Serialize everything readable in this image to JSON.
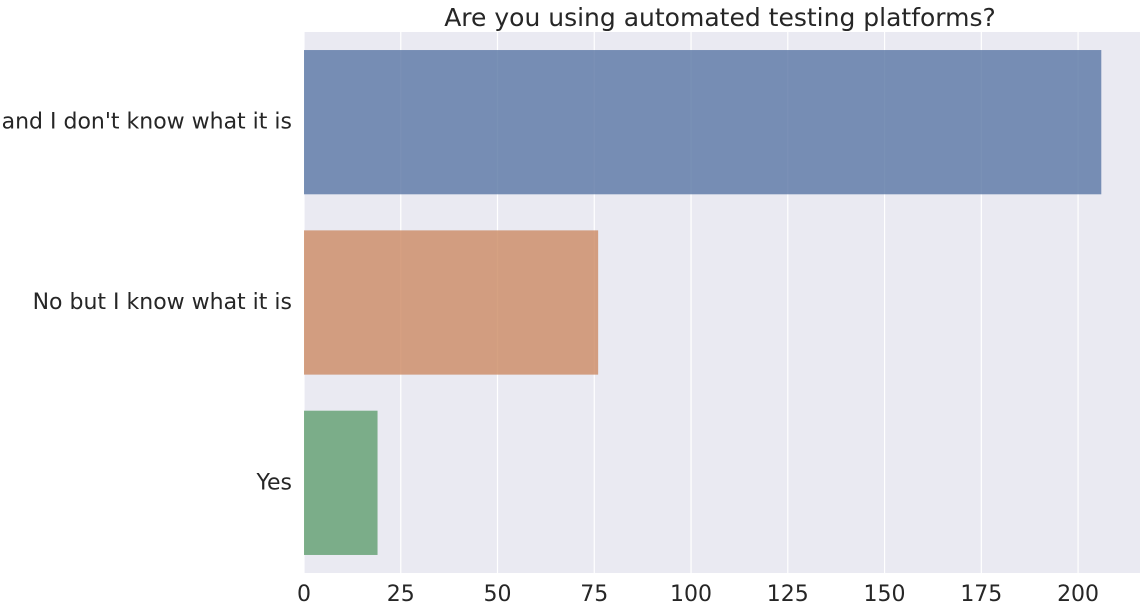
{
  "chart_data": {
    "type": "bar",
    "orientation": "horizontal",
    "title": "Are you using automated testing platforms?",
    "xlabel": "",
    "ylabel": "",
    "categories": [
      "No and I don't know what it is",
      "No but I know what it is",
      "Yes"
    ],
    "values": [
      206,
      76,
      19
    ],
    "xlim": [
      0,
      216
    ],
    "xticks": [
      0,
      25,
      50,
      75,
      100,
      125,
      150,
      175,
      200
    ],
    "grid": true,
    "colors": [
      "#5975a4",
      "#cc8963",
      "#5f9e6e"
    ],
    "background": "#eaeaf2"
  }
}
